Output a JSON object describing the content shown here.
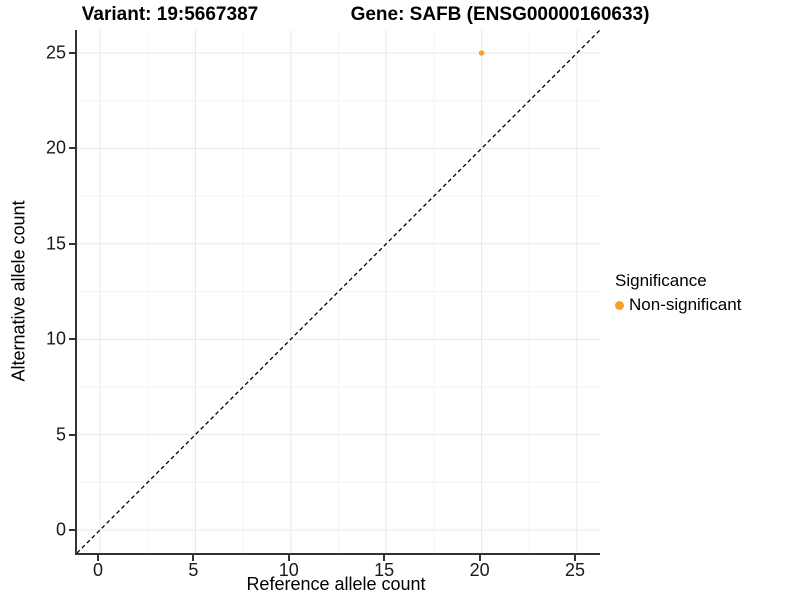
{
  "titles": {
    "variant": "Variant: 19:5667387",
    "gene": "Gene: SAFB (ENSG00000160633)"
  },
  "chart_data": {
    "type": "scatter",
    "title_left": "Variant: 19:5667387",
    "title_right": "Gene: SAFB (ENSG00000160633)",
    "xlabel": "Reference allele count",
    "ylabel": "Alternative allele count",
    "xlim": [
      0,
      25
    ],
    "ylim": [
      0,
      25
    ],
    "x_ticks": [
      0,
      5,
      10,
      15,
      20,
      25
    ],
    "y_ticks": [
      0,
      5,
      10,
      15,
      20,
      25
    ],
    "grid": "major and minor gridlines on, white background",
    "identity_line": {
      "equation": "y = x",
      "style": "dashed",
      "color": "#000000"
    },
    "series": [
      {
        "name": "Non-significant",
        "color": "#F9A02B",
        "points": [
          {
            "x": 20,
            "y": 25
          }
        ]
      }
    ],
    "legend": {
      "title": "Significance",
      "position": "right",
      "entries": [
        {
          "label": "Non-significant",
          "color": "#F9A02B"
        }
      ]
    }
  },
  "colors": {
    "accent_orange": "#F9A02B",
    "axis_line": "#333333",
    "grid_major": "#E8E8E8",
    "grid_minor": "#F4F4F4",
    "tick_text": "#1a1a1a",
    "background": "#FFFFFF"
  }
}
